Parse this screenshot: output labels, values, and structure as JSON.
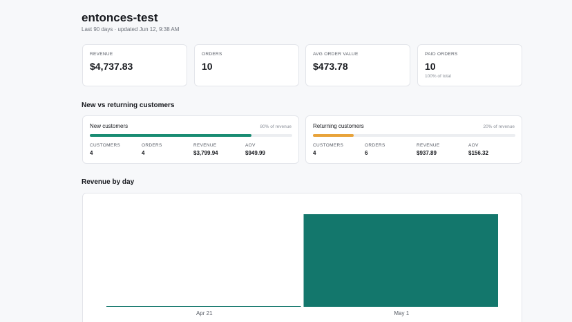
{
  "header": {
    "title": "entonces-test",
    "subtitle": "Last 90 days · updated Jun 12, 9:38 AM"
  },
  "kpis": [
    {
      "label": "REVENUE",
      "value": "$4,737.83"
    },
    {
      "label": "ORDERS",
      "value": "10"
    },
    {
      "label": "AVG ORDER VALUE",
      "value": "$473.78"
    },
    {
      "label": "PAID ORDERS",
      "value": "10",
      "note": "100% of total"
    }
  ],
  "segments": {
    "title": "New vs returning customers",
    "cards": [
      {
        "title": "New customers",
        "share": 80,
        "share_label": "80% of revenue",
        "color": "#1a8c73",
        "stats": [
          {
            "label": "CUSTOMERS",
            "value": "4"
          },
          {
            "label": "ORDERS",
            "value": "4"
          },
          {
            "label": "REVENUE",
            "value": "$3,799.94"
          },
          {
            "label": "AOV",
            "value": "$949.99"
          }
        ]
      },
      {
        "title": "Returning customers",
        "share": 20,
        "share_label": "20% of revenue",
        "color": "#e8a33a",
        "stats": [
          {
            "label": "CUSTOMERS",
            "value": "4"
          },
          {
            "label": "ORDERS",
            "value": "6"
          },
          {
            "label": "REVENUE",
            "value": "$937.89"
          },
          {
            "label": "AOV",
            "value": "$156.32"
          }
        ]
      }
    ]
  },
  "chart_data": {
    "type": "bar",
    "title": "Revenue by day",
    "categories": [
      "Apr 21",
      "May 1"
    ],
    "values": [
      0,
      4737.83
    ],
    "color": "#13776c"
  }
}
